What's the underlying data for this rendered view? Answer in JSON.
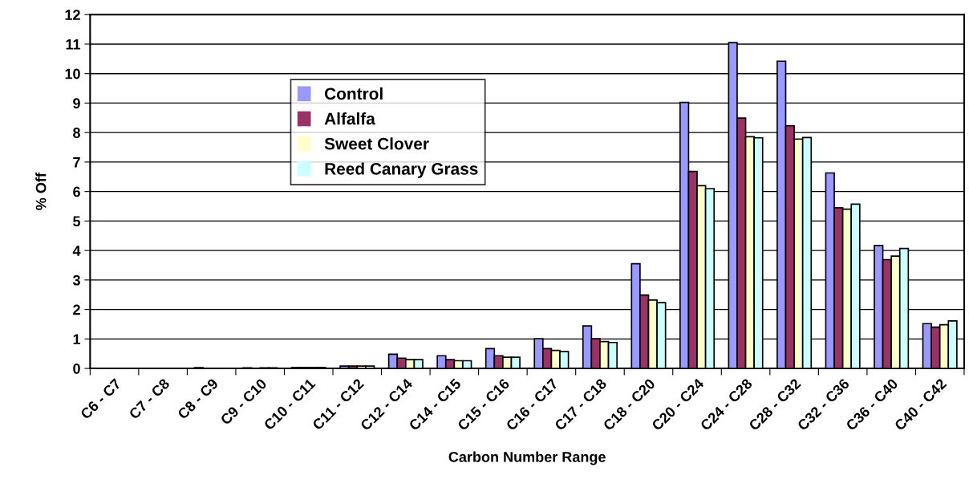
{
  "chart_data": {
    "type": "bar",
    "xlabel": "Carbon Number Range",
    "ylabel": "% Off",
    "categories": [
      "C6 - C7",
      "C7 - C8",
      "C8 - C9",
      "C9 - C10",
      "C10 - C11",
      "C11 - C12",
      "C12 - C14",
      "C14 - C15",
      "C15 - C16",
      "C16 - C17",
      "C17 - C18",
      "C18 - C20",
      "C20 - C24",
      "C24 - C28",
      "C28 - C32",
      "C32 - C36",
      "C36 - C40",
      "C40 - C42"
    ],
    "series": [
      {
        "name": "Control",
        "color": "#9999ff",
        "values": [
          0,
          0,
          0.03,
          0.02,
          0.03,
          0.08,
          0.48,
          0.43,
          0.67,
          1.01,
          1.44,
          3.55,
          9.02,
          11.05,
          10.42,
          6.63,
          4.17,
          1.52
        ]
      },
      {
        "name": "Alfalfa",
        "color": "#993366",
        "values": [
          0,
          0,
          0,
          0,
          0.03,
          0.08,
          0.35,
          0.3,
          0.43,
          0.67,
          1.01,
          2.49,
          6.68,
          8.49,
          8.23,
          5.45,
          3.69,
          1.4
        ]
      },
      {
        "name": "Sweet Clover",
        "color": "#ffffcc",
        "values": [
          0,
          0,
          0,
          0.02,
          0.03,
          0.08,
          0.3,
          0.26,
          0.38,
          0.61,
          0.91,
          2.32,
          6.2,
          7.86,
          7.78,
          5.4,
          3.81,
          1.48
        ]
      },
      {
        "name": "Reed Canary Grass",
        "color": "#ccffff",
        "values": [
          0,
          0,
          0,
          0.02,
          0.03,
          0.08,
          0.3,
          0.26,
          0.38,
          0.57,
          0.88,
          2.23,
          6.1,
          7.82,
          7.83,
          5.57,
          4.07,
          1.61
        ]
      }
    ],
    "ylim": [
      0,
      12
    ],
    "yticks": [
      0,
      1,
      2,
      3,
      4,
      5,
      6,
      7,
      8,
      9,
      10,
      11,
      12
    ],
    "grid": "y",
    "legend": "top left"
  }
}
